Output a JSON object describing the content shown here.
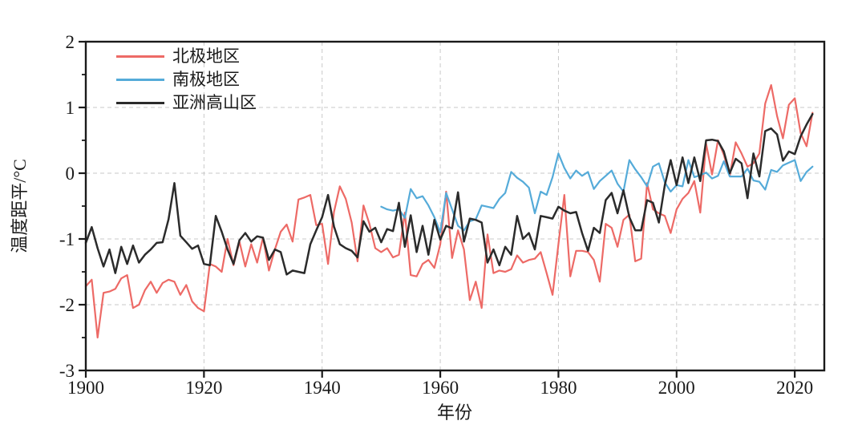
{
  "figure": {
    "background": "#ffffff",
    "axis_color": "#1a1a1a",
    "grid_color": "#c9c9c9"
  },
  "chart_data": {
    "type": "line",
    "title": "",
    "xlabel": "年份",
    "ylabel": "温度距平/°C",
    "xlim": [
      1900,
      2025
    ],
    "ylim": [
      -3,
      2
    ],
    "x_ticks": [
      1900,
      1920,
      1940,
      1960,
      1980,
      2000,
      2020
    ],
    "y_ticks": [
      -3,
      -2,
      -1,
      0,
      1,
      2
    ],
    "y_minor_ticks": [
      -2.5,
      -1.5,
      -0.5,
      0.5,
      1.5
    ],
    "x_gridlines": [
      1920,
      1940,
      1960,
      1980,
      2000,
      2020
    ],
    "y_gridlines": [
      1,
      0,
      -1,
      -2
    ],
    "grid": "dashed",
    "legend_position": "top-left",
    "series": [
      {
        "name": "北极地区",
        "color": "#ed6a66",
        "x_start": 1900,
        "values": [
          -1.72,
          -1.62,
          -2.5,
          -1.82,
          -1.8,
          -1.76,
          -1.6,
          -1.55,
          -2.05,
          -2.0,
          -1.78,
          -1.65,
          -1.82,
          -1.67,
          -1.62,
          -1.65,
          -1.85,
          -1.7,
          -1.95,
          -2.05,
          -2.1,
          -1.38,
          -1.42,
          -1.5,
          -1.0,
          -1.4,
          -1.04,
          -1.42,
          -1.08,
          -1.36,
          -0.98,
          -1.48,
          -1.16,
          -0.89,
          -0.78,
          -1.04,
          -0.4,
          -0.37,
          -0.33,
          -0.79,
          -0.77,
          -1.38,
          -0.59,
          -0.2,
          -0.39,
          -0.75,
          -1.34,
          -0.49,
          -0.77,
          -1.14,
          -1.2,
          -1.14,
          -1.28,
          -1.24,
          -0.6,
          -1.55,
          -1.57,
          -1.38,
          -1.32,
          -1.44,
          -1.08,
          -0.28,
          -1.29,
          -0.87,
          -1.16,
          -1.93,
          -1.65,
          -2.05,
          -0.93,
          -1.52,
          -1.48,
          -1.5,
          -1.46,
          -1.25,
          -1.36,
          -1.32,
          -1.3,
          -1.2,
          -1.52,
          -1.85,
          -1.08,
          -0.33,
          -1.57,
          -1.18,
          -1.18,
          -1.2,
          -1.32,
          -1.65,
          -0.77,
          -0.83,
          -1.12,
          -0.71,
          -0.63,
          -1.34,
          -1.3,
          -0.15,
          -0.55,
          -0.61,
          -0.65,
          -0.91,
          -0.55,
          -0.39,
          -0.3,
          -0.12,
          -0.6,
          0.45,
          -0.02,
          0.5,
          0.28,
          -0.04,
          0.47,
          0.3,
          0.1,
          0.15,
          0.3,
          1.06,
          1.34,
          0.87,
          0.53,
          1.04,
          1.14,
          0.61,
          0.41,
          0.92
        ]
      },
      {
        "name": "南极地区",
        "color": "#55abd9",
        "x_start": 1950,
        "values": [
          -0.51,
          -0.55,
          -0.57,
          -0.55,
          -0.68,
          -0.24,
          -0.38,
          -0.35,
          -0.49,
          -0.67,
          -0.9,
          -0.3,
          -0.55,
          -0.8,
          -0.87,
          -0.73,
          -0.7,
          -0.49,
          -0.51,
          -0.53,
          -0.39,
          -0.3,
          0.02,
          -0.07,
          -0.13,
          -0.22,
          -0.61,
          -0.28,
          -0.33,
          -0.06,
          0.3,
          0.08,
          -0.08,
          0.04,
          -0.04,
          0.02,
          -0.24,
          -0.12,
          -0.04,
          0.04,
          -0.16,
          -0.28,
          0.2,
          0.06,
          -0.06,
          -0.2,
          0.1,
          0.15,
          -0.14,
          -0.28,
          -0.18,
          -0.2,
          0.2,
          -0.06,
          -0.03,
          0.01,
          -0.08,
          -0.04,
          0.18,
          -0.05,
          -0.05,
          -0.05,
          0.07,
          -0.11,
          -0.13,
          -0.25,
          0.05,
          0.02,
          0.12,
          0.16,
          0.2,
          -0.12,
          0.02,
          0.1
        ]
      },
      {
        "name": "亚洲高山区",
        "color": "#2b2b2b",
        "x_start": 1900,
        "values": [
          -1.06,
          -0.82,
          -1.14,
          -1.42,
          -1.16,
          -1.52,
          -1.12,
          -1.38,
          -1.1,
          -1.36,
          -1.24,
          -1.16,
          -1.06,
          -1.05,
          -0.7,
          -0.15,
          -0.95,
          -1.05,
          -1.15,
          -1.1,
          -1.38,
          -1.4,
          -0.65,
          -0.89,
          -1.16,
          -1.38,
          -1.02,
          -0.91,
          -1.04,
          -0.96,
          -0.98,
          -1.32,
          -1.16,
          -1.2,
          -1.54,
          -1.48,
          -1.5,
          -1.52,
          -1.08,
          -0.87,
          -0.67,
          -0.33,
          -0.81,
          -1.08,
          -1.14,
          -1.18,
          -1.28,
          -0.73,
          -0.89,
          -0.83,
          -1.05,
          -0.85,
          -0.88,
          -0.45,
          -1.12,
          -0.64,
          -1.2,
          -0.8,
          -1.24,
          -0.71,
          -1.01,
          -0.8,
          -0.84,
          -0.29,
          -1.04,
          -0.69,
          -0.71,
          -0.75,
          -1.36,
          -1.16,
          -1.4,
          -1.12,
          -1.24,
          -0.65,
          -1.0,
          -0.91,
          -1.16,
          -0.65,
          -0.67,
          -0.69,
          -0.51,
          -0.57,
          -0.61,
          -0.59,
          -0.91,
          -1.18,
          -0.83,
          -0.91,
          -0.41,
          -0.3,
          -0.61,
          -0.26,
          -0.67,
          -0.87,
          -0.87,
          -0.41,
          -0.45,
          -0.75,
          -0.18,
          0.2,
          -0.18,
          0.24,
          -0.15,
          0.24,
          -0.12,
          0.5,
          0.51,
          0.49,
          0.33,
          0.0,
          0.22,
          0.15,
          -0.38,
          0.3,
          -0.05,
          0.64,
          0.68,
          0.59,
          0.19,
          0.33,
          0.29,
          0.56,
          0.74,
          0.9
        ]
      }
    ]
  }
}
